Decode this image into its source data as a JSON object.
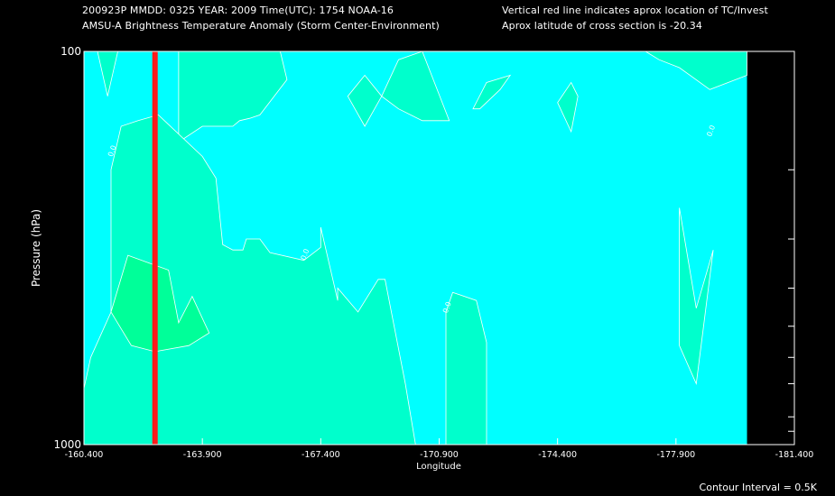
{
  "header": {
    "line1_left": "200923P  MMDD: 0325 YEAR: 2009 Time(UTC): 1754 NOAA-16",
    "line2_left": "AMSU-A Brightness Temperature Anomaly (Storm Center-Environment)",
    "line1_right": "Vertical red line indicates aprox location of TC/Invest",
    "line2_right": "Aprox latitude of cross section is -20.34"
  },
  "footer": {
    "contour_interval": "Contour Interval = 0.5K"
  },
  "colors": {
    "background": "#000000",
    "field_base": "#00ffff",
    "level_1": "#00ffcc",
    "level_2": "#00ff99",
    "storm_line": "#ff1a1a",
    "contour": "#ffffff"
  },
  "chart_data": {
    "type": "heatmap",
    "xlabel": "Longitude",
    "ylabel": "Pressure (hPa)",
    "x_scale": "linear",
    "y_scale": "log",
    "xlim": [
      -160.4,
      -181.4
    ],
    "ylim": [
      1000,
      100
    ],
    "x_ticks": [
      -160.4,
      -163.9,
      -167.4,
      -170.9,
      -174.4,
      -177.9,
      -181.4
    ],
    "x_tick_labels": [
      "-160.400",
      "-163.900",
      "-167.400",
      "-170.900",
      "-174.400",
      "-177.900",
      "-181.400"
    ],
    "y_ticks": [
      1000,
      100
    ],
    "y_tick_labels": [
      "1000",
      "100"
    ],
    "y_minor_ticks": [
      200,
      300,
      400,
      500,
      600,
      700,
      850,
      925
    ],
    "storm_longitude": -162.5,
    "data_extent_lon": [
      -160.4,
      -180.0
    ],
    "contour_labels": [
      {
        "text": "0.0",
        "lon": -161.3,
        "p": 180
      },
      {
        "text": "0.0",
        "lon": -167.0,
        "p": 330
      },
      {
        "text": "0.0",
        "lon": -171.2,
        "p": 450
      },
      {
        "text": "0.0",
        "lon": -179.0,
        "p": 160
      }
    ],
    "regions": [
      {
        "level": "level_1",
        "points": [
          [
            -160.4,
            100
          ],
          [
            -160.8,
            100
          ],
          [
            -161.1,
            130
          ],
          [
            -161.4,
            100
          ],
          [
            -163.2,
            100
          ],
          [
            -163.2,
            170
          ],
          [
            -163.9,
            155
          ],
          [
            -164.2,
            155
          ],
          [
            -164.8,
            155
          ],
          [
            -165.0,
            150
          ],
          [
            -165.3,
            148
          ],
          [
            -165.6,
            145
          ],
          [
            -166.4,
            118
          ],
          [
            -166.2,
            100
          ],
          [
            -160.4,
            100
          ]
        ]
      },
      {
        "level": "level_1",
        "points": [
          [
            -160.4,
            220
          ],
          [
            -160.4,
            720
          ],
          [
            -160.6,
            600
          ],
          [
            -161.2,
            460
          ],
          [
            -161.2,
            200
          ],
          [
            -161.5,
            155
          ],
          [
            -162.0,
            150
          ],
          [
            -162.6,
            145
          ],
          [
            -163.9,
            185
          ],
          [
            -164.3,
            210
          ],
          [
            -164.5,
            310
          ],
          [
            -164.8,
            320
          ],
          [
            -165.1,
            320
          ],
          [
            -165.2,
            300
          ],
          [
            -165.6,
            300
          ],
          [
            -165.9,
            325
          ],
          [
            -166.9,
            340
          ],
          [
            -167.4,
            315
          ],
          [
            -167.4,
            280
          ],
          [
            -167.9,
            430
          ],
          [
            -167.9,
            400
          ],
          [
            -168.5,
            460
          ],
          [
            -169.1,
            380
          ],
          [
            -169.3,
            380
          ],
          [
            -169.9,
            700
          ],
          [
            -170.2,
            1000
          ],
          [
            -160.4,
            1000
          ],
          [
            -160.4,
            220
          ]
        ]
      },
      {
        "level": "level_2",
        "points": [
          [
            -161.2,
            460
          ],
          [
            -161.7,
            330
          ],
          [
            -162.9,
            360
          ],
          [
            -163.2,
            490
          ],
          [
            -163.6,
            420
          ],
          [
            -164.1,
            520
          ],
          [
            -163.5,
            560
          ],
          [
            -162.5,
            580
          ],
          [
            -161.8,
            560
          ],
          [
            -161.2,
            460
          ]
        ]
      },
      {
        "level": "level_1",
        "points": [
          [
            -168.2,
            130
          ],
          [
            -168.7,
            155
          ],
          [
            -169.2,
            130
          ],
          [
            -168.7,
            115
          ],
          [
            -168.2,
            130
          ]
        ]
      },
      {
        "level": "level_1",
        "points": [
          [
            -169.2,
            130
          ],
          [
            -169.7,
            105
          ],
          [
            -170.4,
            100
          ],
          [
            -171.2,
            150
          ],
          [
            -170.4,
            150
          ],
          [
            -169.7,
            140
          ],
          [
            -169.2,
            130
          ]
        ]
      },
      {
        "level": "level_1",
        "points": [
          [
            -171.1,
            460
          ],
          [
            -171.1,
            1000
          ],
          [
            -172.3,
            1000
          ],
          [
            -172.3,
            550
          ],
          [
            -172.0,
            430
          ],
          [
            -171.3,
            410
          ],
          [
            -171.1,
            460
          ]
        ]
      },
      {
        "level": "level_1",
        "points": [
          [
            -171.9,
            140
          ],
          [
            -172.1,
            140
          ],
          [
            -172.7,
            125
          ],
          [
            -173.0,
            115
          ],
          [
            -172.3,
            120
          ],
          [
            -171.9,
            140
          ]
        ]
      },
      {
        "level": "level_1",
        "points": [
          [
            -174.4,
            135
          ],
          [
            -174.8,
            160
          ],
          [
            -175.0,
            130
          ],
          [
            -174.8,
            120
          ],
          [
            -174.4,
            135
          ]
        ]
      },
      {
        "level": "level_1",
        "points": [
          [
            -177.0,
            100
          ],
          [
            -177.4,
            105
          ],
          [
            -178.0,
            110
          ],
          [
            -178.9,
            125
          ],
          [
            -180.0,
            115
          ],
          [
            -180.0,
            100
          ],
          [
            -177.0,
            100
          ]
        ]
      },
      {
        "level": "level_1",
        "points": [
          [
            -178.0,
            250
          ],
          [
            -178.5,
            450
          ],
          [
            -179.0,
            320
          ],
          [
            -178.5,
            700
          ],
          [
            -178.0,
            560
          ],
          [
            -178.0,
            250
          ]
        ]
      }
    ]
  }
}
